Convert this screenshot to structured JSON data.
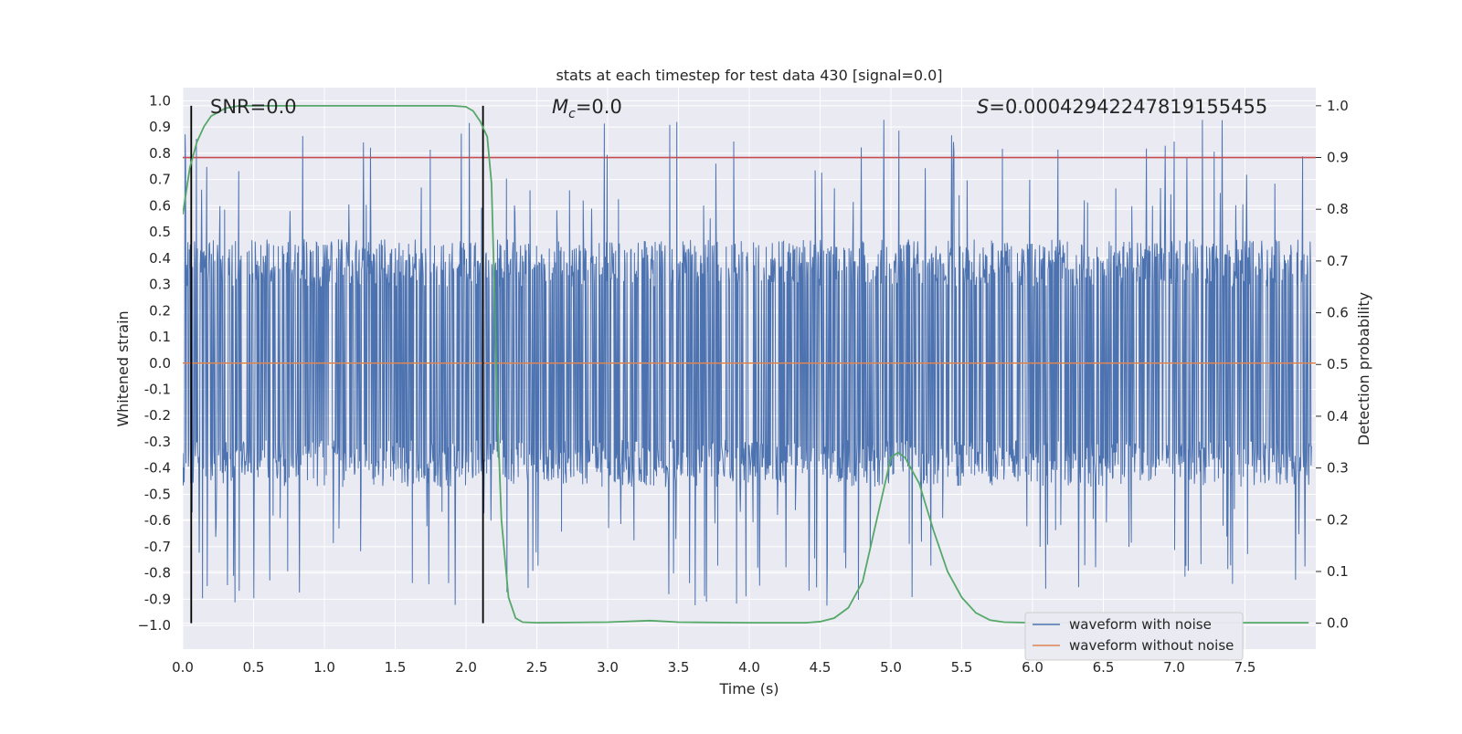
{
  "chart_data": {
    "type": "line",
    "title": "stats at each timestep for test data 430 [signal=0.0]",
    "xlabel": "Time (s)",
    "ylabel": "Whitened strain",
    "ylabel_right": "Detection probability",
    "xlim": [
      0.0,
      8.0
    ],
    "ylim": [
      -1.09,
      1.05
    ],
    "ylim_right": [
      -0.05,
      1.035
    ],
    "x_ticks": [
      "0.0",
      "0.5",
      "1.0",
      "1.5",
      "2.0",
      "2.5",
      "3.0",
      "3.5",
      "4.0",
      "4.5",
      "5.0",
      "5.5",
      "6.0",
      "6.5",
      "7.0",
      "7.5"
    ],
    "x_tick_values": [
      0,
      0.5,
      1,
      1.5,
      2,
      2.5,
      3,
      3.5,
      4,
      4.5,
      5,
      5.5,
      6,
      6.5,
      7,
      7.5
    ],
    "y_ticks": [
      "1.0",
      "0.9",
      "0.8",
      "0.7",
      "0.6",
      "0.5",
      "0.4",
      "0.3",
      "0.2",
      "0.1",
      "0.0",
      "-0.1",
      "-0.2",
      "-0.3",
      "-0.4",
      "-0.5",
      "-0.6",
      "-0.7",
      "-0.8",
      "-0.9",
      "−1.0"
    ],
    "y_tick_values": [
      1.0,
      0.9,
      0.8,
      0.7,
      0.6,
      0.5,
      0.4,
      0.3,
      0.2,
      0.1,
      0.0,
      -0.1,
      -0.2,
      -0.3,
      -0.4,
      -0.5,
      -0.6,
      -0.7,
      -0.8,
      -0.9,
      -1.0
    ],
    "y_right_ticks": [
      "1.0",
      "0.9",
      "0.8",
      "0.7",
      "0.6",
      "0.5",
      "0.4",
      "0.3",
      "0.2",
      "0.1",
      "0.0"
    ],
    "y_right_tick_values": [
      1.0,
      0.9,
      0.8,
      0.7,
      0.6,
      0.5,
      0.4,
      0.3,
      0.2,
      0.1,
      0.0
    ],
    "annotations": {
      "snr_text": "SNR=0.0",
      "mc_symbol": "M",
      "mc_subscript": "c",
      "mc_value": "=0.0",
      "s_symbol": "S",
      "s_value": "=0.00042942247819155455"
    },
    "threshold_probability": 0.9,
    "vertical_markers_s": [
      0.06,
      2.12
    ],
    "noise_envelope": {
      "typical_amplitude": 0.45,
      "peak_amplitude_max": 0.93,
      "min_value": -1.0
    },
    "series": [
      {
        "name": "waveform with noise",
        "color": "#4c72b0",
        "axis": "left"
      },
      {
        "name": "waveform without noise",
        "color": "#dd8452",
        "axis": "left",
        "constant_value": 0.0
      },
      {
        "name": "detection probability",
        "color": "#55a868",
        "axis": "right",
        "x": [
          0.0,
          0.05,
          0.1,
          0.15,
          0.2,
          0.3,
          0.4,
          0.6,
          1.0,
          1.5,
          1.9,
          2.0,
          2.05,
          2.1,
          2.15,
          2.18,
          2.2,
          2.22,
          2.25,
          2.3,
          2.35,
          2.4,
          2.5,
          3.0,
          3.3,
          3.5,
          4.0,
          4.4,
          4.5,
          4.6,
          4.7,
          4.8,
          4.9,
          5.0,
          5.05,
          5.1,
          5.2,
          5.3,
          5.4,
          5.5,
          5.6,
          5.7,
          5.8,
          6.0,
          7.0,
          7.95
        ],
        "values": [
          0.79,
          0.88,
          0.93,
          0.96,
          0.98,
          0.995,
          1.0,
          1.0,
          1.0,
          1.0,
          1.0,
          0.998,
          0.99,
          0.97,
          0.94,
          0.85,
          0.65,
          0.42,
          0.2,
          0.05,
          0.01,
          0.002,
          0.001,
          0.002,
          0.005,
          0.002,
          0.001,
          0.001,
          0.003,
          0.01,
          0.03,
          0.08,
          0.2,
          0.32,
          0.33,
          0.32,
          0.27,
          0.18,
          0.1,
          0.05,
          0.02,
          0.006,
          0.002,
          0.001,
          0.001,
          0.001
        ]
      }
    ],
    "legend": {
      "placement": "lower-right",
      "entries": [
        "waveform with noise",
        "waveform without noise"
      ]
    },
    "colors": {
      "background": "#eaeaf2",
      "grid": "#ffffff",
      "threshold_line": "#c44e52",
      "marker_line": "#000000"
    }
  }
}
